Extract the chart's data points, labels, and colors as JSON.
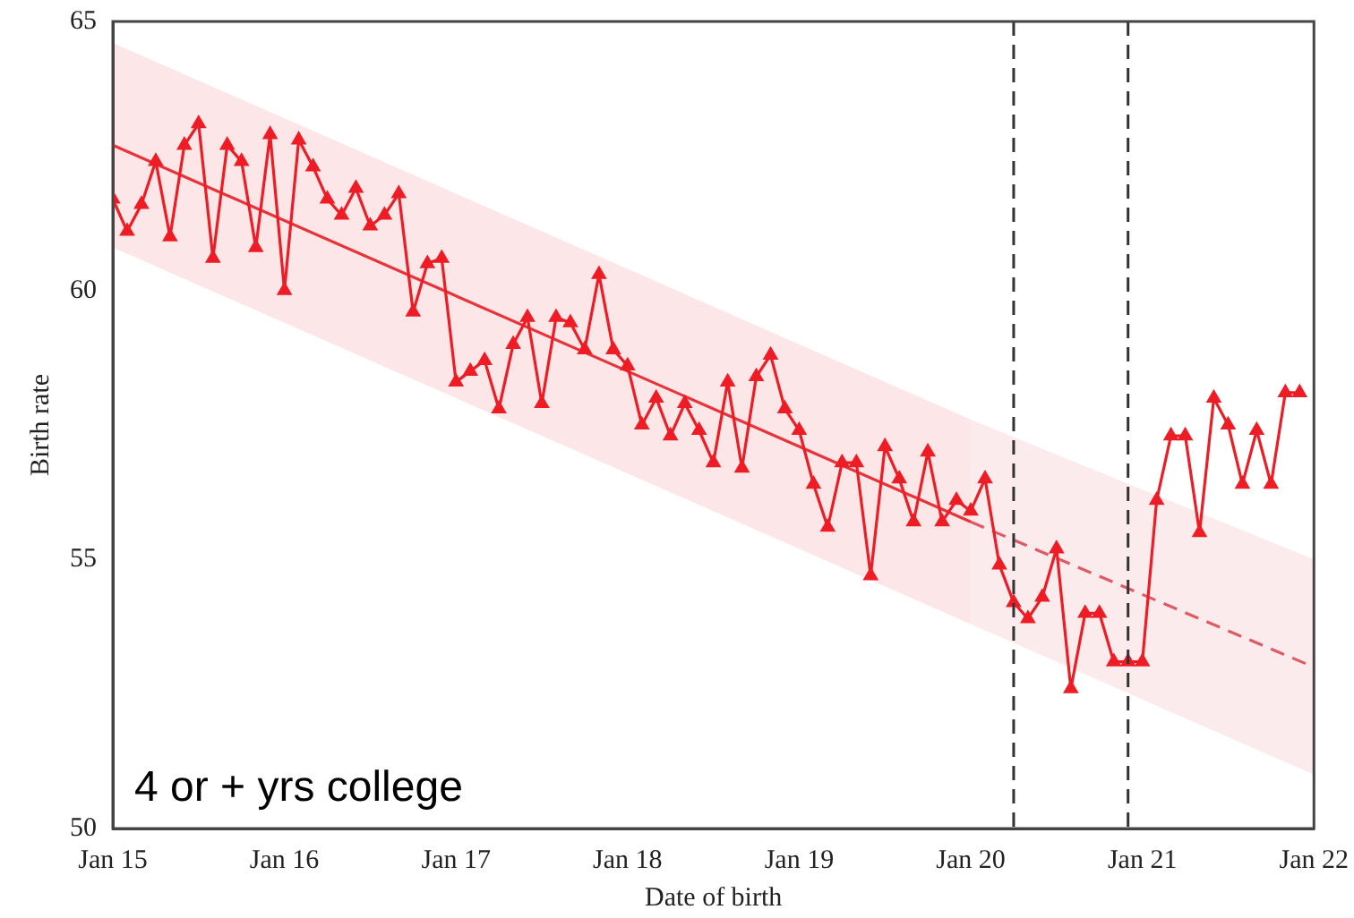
{
  "chart_data": {
    "type": "line",
    "xlabel": "Date of birth",
    "ylabel": "Birth rate",
    "marker": "triangle",
    "x": [
      "2015-01",
      "2015-02",
      "2015-03",
      "2015-04",
      "2015-05",
      "2015-06",
      "2015-07",
      "2015-08",
      "2015-09",
      "2015-10",
      "2015-11",
      "2015-12",
      "2016-01",
      "2016-02",
      "2016-03",
      "2016-04",
      "2016-05",
      "2016-06",
      "2016-07",
      "2016-08",
      "2016-09",
      "2016-10",
      "2016-11",
      "2016-12",
      "2017-01",
      "2017-02",
      "2017-03",
      "2017-04",
      "2017-05",
      "2017-06",
      "2017-07",
      "2017-08",
      "2017-09",
      "2017-10",
      "2017-11",
      "2017-12",
      "2018-01",
      "2018-02",
      "2018-03",
      "2018-04",
      "2018-05",
      "2018-06",
      "2018-07",
      "2018-08",
      "2018-09",
      "2018-10",
      "2018-11",
      "2018-12",
      "2019-01",
      "2019-02",
      "2019-03",
      "2019-04",
      "2019-05",
      "2019-06",
      "2019-07",
      "2019-08",
      "2019-09",
      "2019-10",
      "2019-11",
      "2019-12",
      "2020-01",
      "2020-02",
      "2020-03",
      "2020-04",
      "2020-05",
      "2020-06",
      "2020-07",
      "2020-08",
      "2020-09",
      "2020-10",
      "2020-11",
      "2020-12",
      "2021-01",
      "2021-02",
      "2021-03",
      "2021-04",
      "2021-05",
      "2021-06",
      "2021-07",
      "2021-08",
      "2021-09",
      "2021-10",
      "2021-11",
      "2021-12"
    ],
    "series": [
      {
        "color": "#ee1c25",
        "values": [
          61.7,
          61.1,
          61.6,
          62.4,
          61.0,
          62.7,
          63.1,
          60.6,
          62.7,
          62.4,
          60.8,
          62.9,
          60.0,
          62.8,
          62.3,
          61.7,
          61.4,
          61.9,
          61.2,
          61.4,
          61.8,
          59.6,
          60.5,
          60.6,
          58.3,
          58.5,
          58.7,
          57.8,
          59.0,
          59.5,
          57.9,
          59.5,
          59.4,
          58.9,
          60.3,
          58.9,
          58.6,
          57.5,
          58.0,
          57.3,
          57.9,
          57.4,
          56.8,
          58.3,
          56.7,
          58.4,
          58.8,
          57.8,
          57.4,
          56.4,
          55.6,
          56.8,
          56.8,
          54.7,
          57.1,
          56.5,
          55.7,
          57.0,
          55.7,
          56.1,
          55.9,
          56.5,
          54.9,
          54.2,
          53.9,
          54.3,
          55.2,
          52.6,
          54.0,
          54.0,
          53.1,
          53.1,
          53.1,
          56.1,
          57.3,
          57.3,
          55.5,
          58.0,
          57.5,
          56.4,
          57.4,
          56.4,
          58.1,
          58.1
        ]
      },
      {
        "type": "line",
        "color": "#e8333a",
        "line_style": "solid",
        "marker": "none",
        "x": [
          "2015-01",
          "2020-01"
        ],
        "values": [
          62.7,
          55.7
        ],
        "lower": [
          60.8,
          53.8
        ],
        "upper": [
          64.6,
          57.6
        ]
      },
      {
        "type": "line",
        "color": "#e05a66",
        "line_style": "dashed",
        "marker": "none",
        "x": [
          "2020-01",
          "2022-01"
        ],
        "values": [
          55.7,
          53.0
        ],
        "lower": [
          53.8,
          51.0
        ],
        "upper": [
          57.6,
          55.0
        ]
      }
    ],
    "xlim": [
      "2015-01",
      "2022-01"
    ],
    "xticks": [
      {
        "value": "2015-01",
        "label": "Jan 15"
      },
      {
        "value": "2016-01",
        "label": "Jan 16"
      },
      {
        "value": "2017-01",
        "label": "Jan 17"
      },
      {
        "value": "2018-01",
        "label": "Jan 18"
      },
      {
        "value": "2019-01",
        "label": "Jan 19"
      },
      {
        "value": "2020-01",
        "label": "Jan 20"
      },
      {
        "value": "2021-01",
        "label": "Jan 21"
      },
      {
        "value": "2022-01",
        "label": "Jan 22"
      }
    ],
    "ylim": [
      50,
      65
    ],
    "yticks": [
      50,
      55,
      60,
      65
    ],
    "ref_lines": [
      {
        "axis": "x",
        "value": "2020-04",
        "color": "#333333",
        "line_style": "dashed"
      },
      {
        "axis": "x",
        "value": "2020-12",
        "color": "#333333",
        "line_style": "dashed"
      }
    ],
    "annotations": [
      "4 or + yrs college"
    ]
  }
}
